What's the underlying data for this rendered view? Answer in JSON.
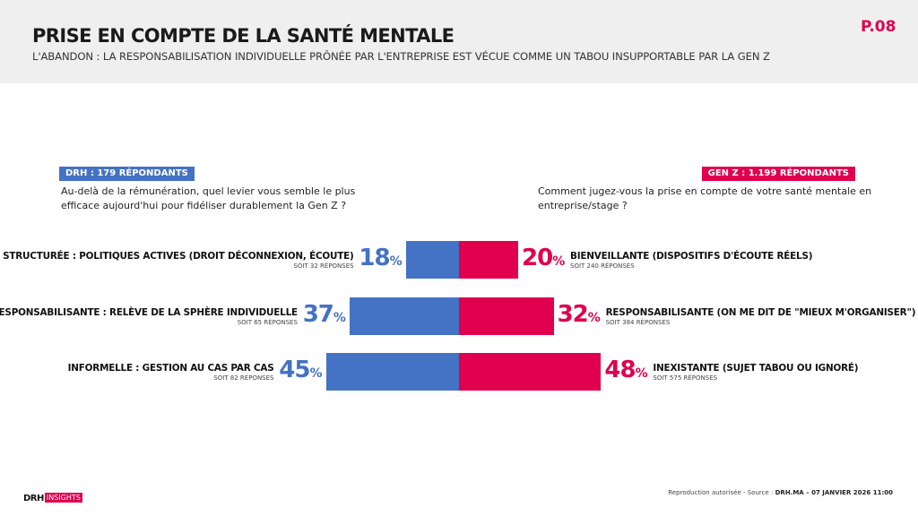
{
  "header": {
    "title": "PRISE EN COMPTE DE LA SANTÉ MENTALE",
    "subtitle": "L'ABANDON : LA RESPONSABILISATION INDIVIDUELLE PRÔNÉE PAR L'ENTREPRISE EST VÉCUE COMME UN TABOU INSUPPORTABLE PAR LA GEN Z",
    "page_number": "P.08"
  },
  "left_panel": {
    "badge": "DRH : 179 RÉPONDANTS",
    "question": "Au-delà de la rémunération, quel levier vous semble le plus efficace aujourd'hui pour fidéliser durablement la Gen Z ?"
  },
  "right_panel": {
    "badge": "GEN Z : 1.199 RÉPONDANTS",
    "question": "Comment jugez-vous la prise en compte de votre santé mentale en entreprise/stage ?"
  },
  "chart_data": {
    "type": "bar",
    "orientation": "horizontal-diverging",
    "unit": "%",
    "series": [
      {
        "name": "DRH : 179 RÉPONDANTS",
        "color": "#4472c4",
        "categories": [
          "STRUCTURÉE : POLITIQUES ACTIVES (DROIT DÉCONNEXION, ÉCOUTE)",
          "RESPONSABILISANTE : RELÈVE DE LA SPHÈRE INDIVIDUELLE",
          "INFORMELLE : GESTION AU CAS PAR CAS"
        ],
        "values": [
          18,
          37,
          45
        ],
        "responses": [
          "SOIT 32 RÉPONSES",
          "SOIT 65 RÉPONSES",
          "SOIT 82 RÉPONSES"
        ]
      },
      {
        "name": "GEN Z : 1.199 RÉPONDANTS",
        "color": "#e0004d",
        "categories": [
          "BIENVEILLANTE (DISPOSITIFS D'ÉCOUTE RÉELS)",
          "RESPONSABILISANTE (ON ME DIT DE \"MIEUX M'ORGANISER\")",
          "INEXISTANTE (SUJET TABOU OU IGNORÉ)"
        ],
        "values": [
          20,
          32,
          48
        ],
        "responses": [
          "SOIT 240 RÉPONSES",
          "SOIT 384 RÉPONSES",
          "SOIT 575 RÉPONSES"
        ]
      }
    ],
    "xlim": [
      0,
      50
    ]
  },
  "footer": {
    "logo_text": "DRH",
    "logo_tag": "INSIGHTS",
    "source_prefix": "Reproduction autorisée  - Source : ",
    "source_bold": "DRH.MA – 07 JANVIER 2026 11:00"
  }
}
